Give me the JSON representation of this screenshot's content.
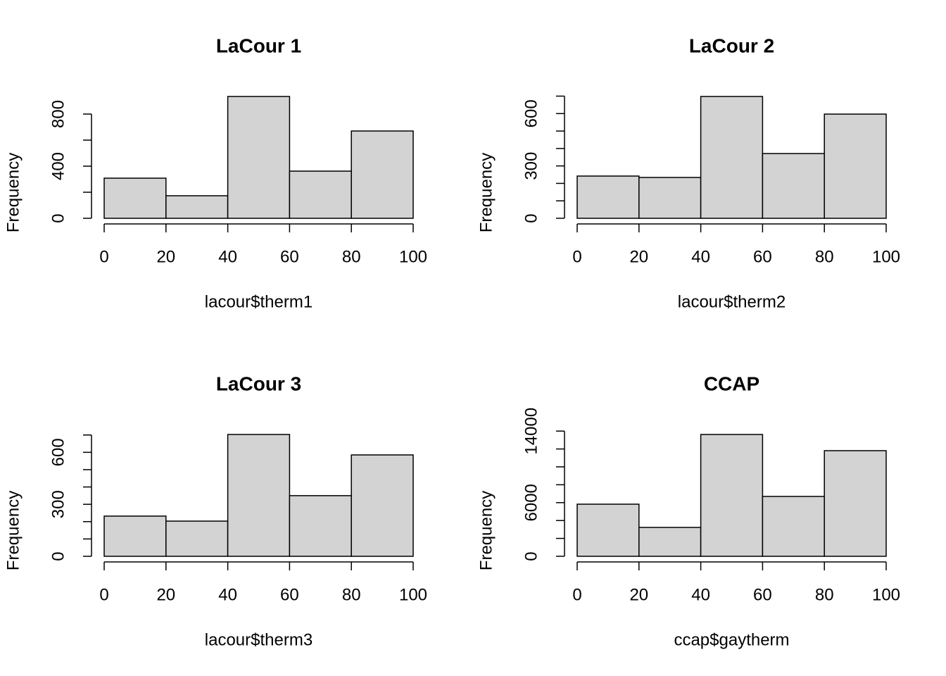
{
  "chart_data": [
    {
      "type": "histogram",
      "title": "LaCour 1",
      "xlabel": "lacour$therm1",
      "ylabel": "Frequency",
      "bins": [
        0,
        20,
        40,
        60,
        80,
        100
      ],
      "values": [
        308,
        173,
        935,
        362,
        670
      ],
      "color": "#d3d3d3",
      "xlim": [
        0,
        100
      ],
      "xticks": [
        0,
        20,
        40,
        60,
        80,
        100
      ],
      "ylim": [
        0,
        935
      ],
      "yticks": [
        0,
        400,
        800
      ],
      "yticks_minor": [
        200,
        600
      ]
    },
    {
      "type": "histogram",
      "title": "LaCour 2",
      "xlabel": "lacour$therm2",
      "ylabel": "Frequency",
      "bins": [
        0,
        20,
        40,
        60,
        80,
        100
      ],
      "values": [
        242,
        234,
        698,
        371,
        597
      ],
      "color": "#d3d3d3",
      "xlim": [
        0,
        100
      ],
      "xticks": [
        0,
        20,
        40,
        60,
        80,
        100
      ],
      "ylim": [
        0,
        698
      ],
      "yticks": [
        0,
        300,
        600
      ],
      "yticks_minor": [
        100,
        200,
        400,
        500,
        700
      ]
    },
    {
      "type": "histogram",
      "title": "LaCour 3",
      "xlabel": "lacour$therm3",
      "ylabel": "Frequency",
      "bins": [
        0,
        20,
        40,
        60,
        80,
        100
      ],
      "values": [
        232,
        203,
        703,
        350,
        585
      ],
      "color": "#d3d3d3",
      "xlim": [
        0,
        100
      ],
      "xticks": [
        0,
        20,
        40,
        60,
        80,
        100
      ],
      "ylim": [
        0,
        703
      ],
      "yticks": [
        0,
        300,
        600
      ],
      "yticks_minor": [
        100,
        200,
        400,
        500,
        700
      ]
    },
    {
      "type": "histogram",
      "title": "CCAP",
      "xlabel": "ccap$gaytherm",
      "ylabel": "Frequency",
      "bins": [
        0,
        20,
        40,
        60,
        80,
        100
      ],
      "values": [
        5827,
        3228,
        13622,
        6693,
        11811
      ],
      "color": "#d3d3d3",
      "xlim": [
        0,
        100
      ],
      "xticks": [
        0,
        20,
        40,
        60,
        80,
        100
      ],
      "ylim": [
        0,
        13622
      ],
      "yticks": [
        0,
        6000,
        14000
      ],
      "yticks_minor": [
        2000,
        4000,
        8000,
        10000,
        12000
      ]
    }
  ]
}
